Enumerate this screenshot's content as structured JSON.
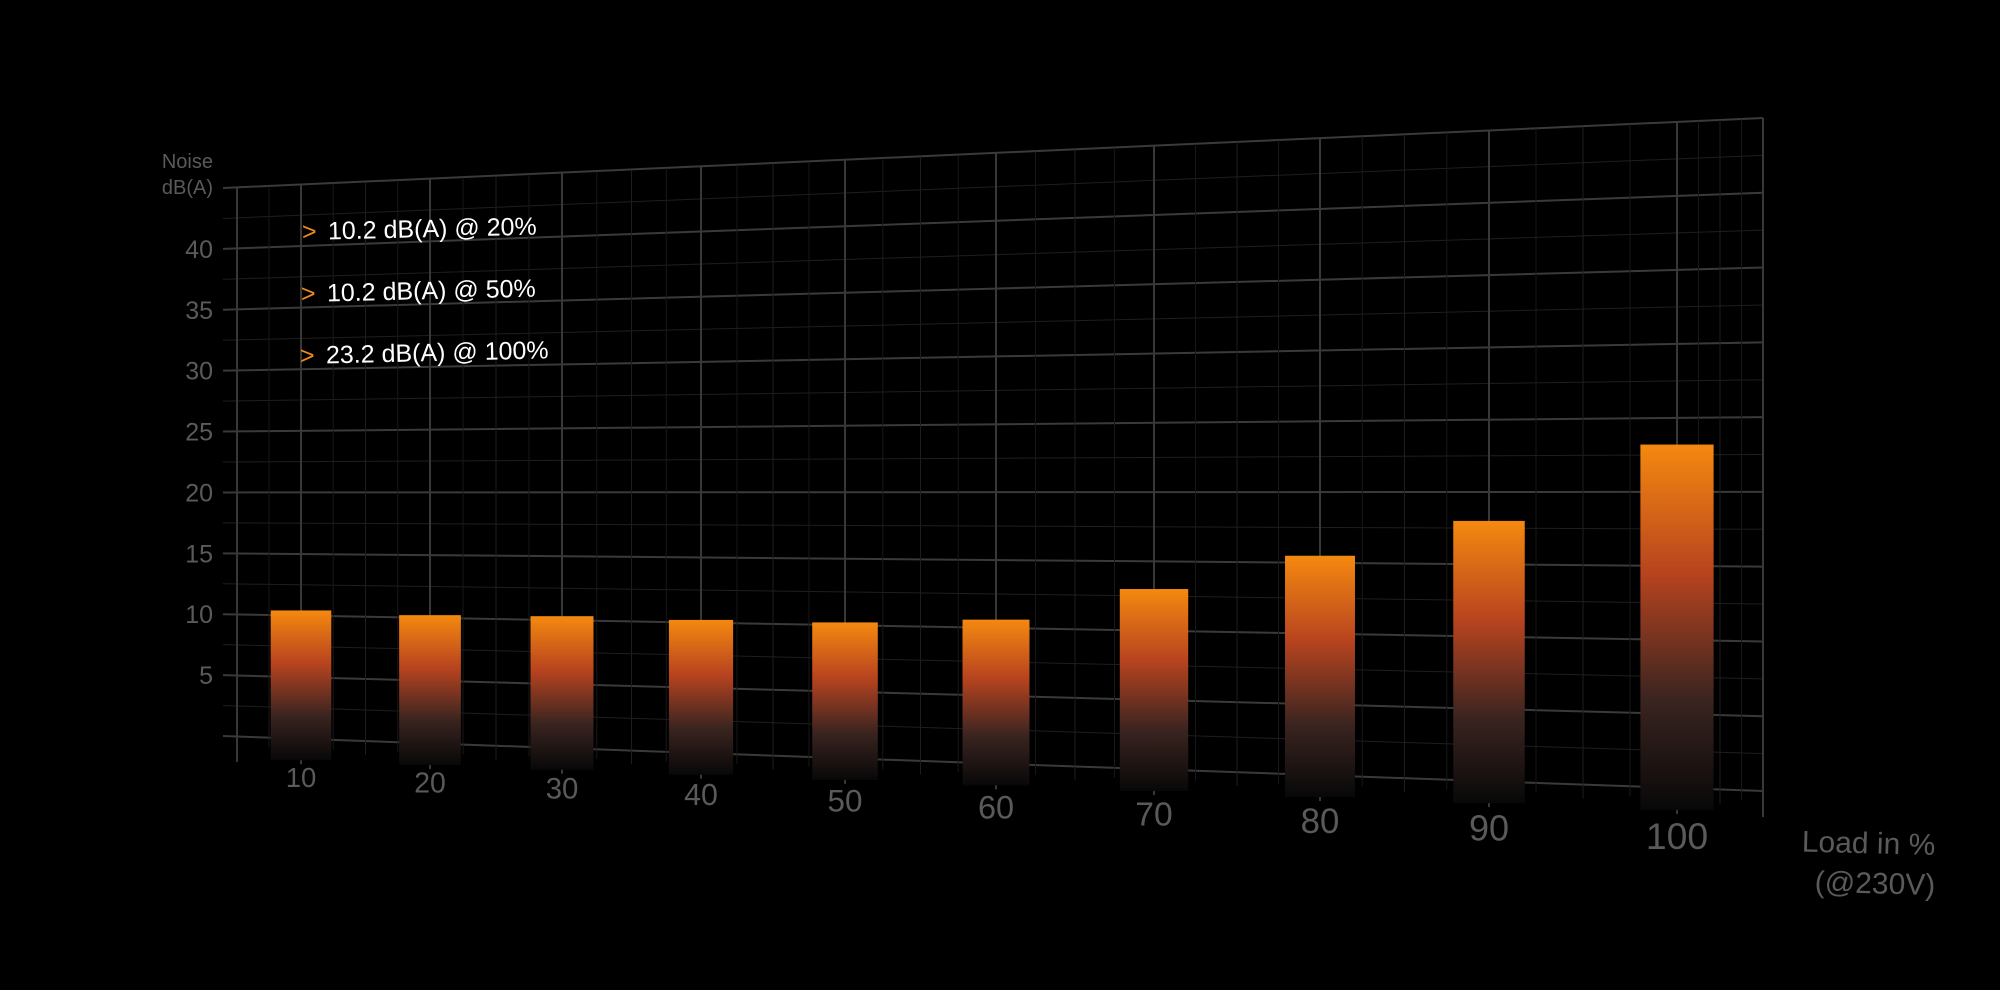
{
  "chart_data": {
    "type": "bar",
    "ylabel": [
      "Noise",
      "dB(A)"
    ],
    "xlabel": [
      "Load in %",
      "(@230V)"
    ],
    "categories": [
      "10",
      "20",
      "30",
      "40",
      "50",
      "60",
      "70",
      "80",
      "90",
      "100"
    ],
    "values": [
      10.4,
      10.2,
      10.3,
      10.2,
      10.2,
      10.6,
      13.0,
      15.5,
      18.0,
      23.2
    ],
    "ylim": [
      0,
      45
    ],
    "yticks": [
      "5",
      "10",
      "15",
      "20",
      "25",
      "30",
      "35",
      "40"
    ],
    "grid": true,
    "annotations": [
      {
        "marker": ">",
        "text": "10.2 dB(A) @ 20%"
      },
      {
        "marker": ">",
        "text": "10.2  dB(A) @ 50%"
      },
      {
        "marker": ">",
        "text": "23.2  dB(A) @ 100%"
      }
    ],
    "colors": {
      "bar_top": "#f5890f",
      "bar_mid": "#b8441f",
      "bar_bottom": "#0a0a0a",
      "grid": "#2e2e2e",
      "axis_text": "#5a5a5a",
      "accent": "#f08a1c"
    }
  }
}
